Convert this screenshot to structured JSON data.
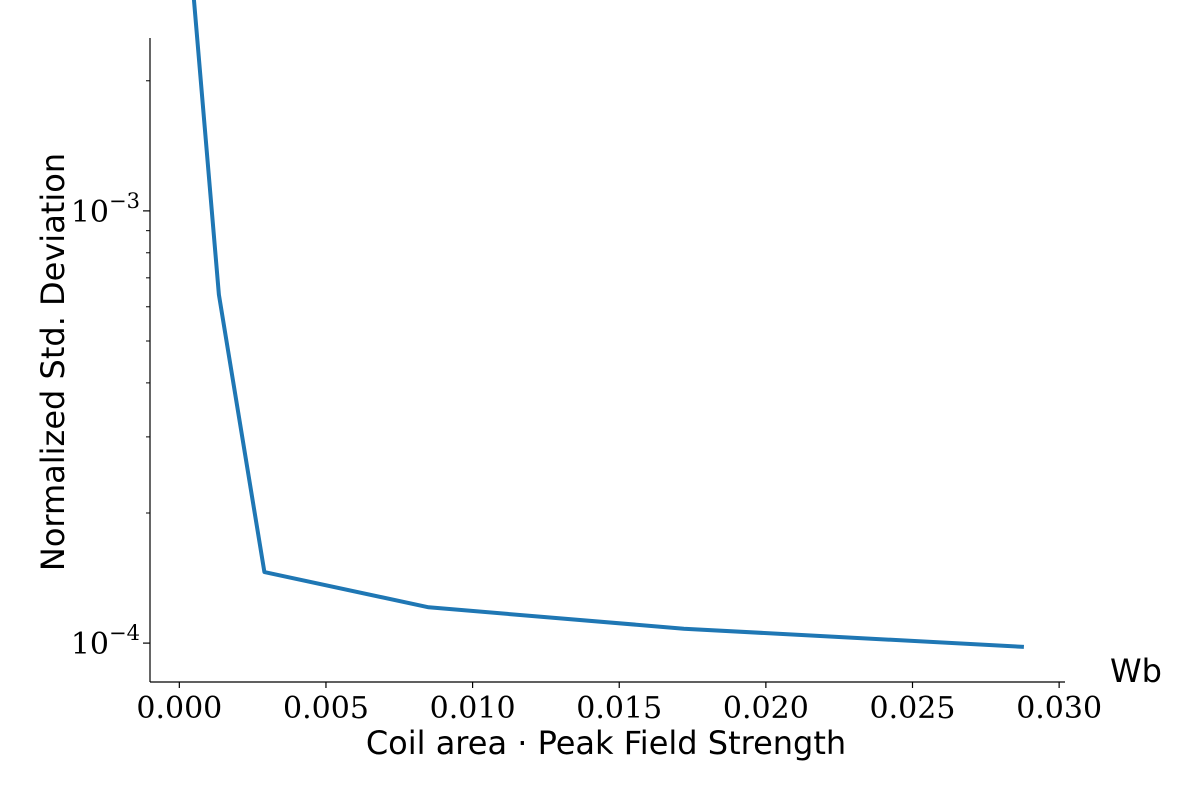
{
  "chart_data": {
    "type": "line",
    "title": "",
    "xlabel": "Coil area · Peak Field Strength",
    "ylabel": "Normalized Std. Deviation",
    "x_unit": "Wb",
    "xlim": [
      -0.001,
      0.0302
    ],
    "ylim_log10": [
      -4.09,
      -2.6
    ],
    "yscale": "log",
    "x_ticks": [
      0.0,
      0.005,
      0.01,
      0.015,
      0.02,
      0.025,
      0.03
    ],
    "x_tick_labels": [
      "0.000",
      "0.005",
      "0.010",
      "0.015",
      "0.020",
      "0.025",
      "0.030"
    ],
    "y_major_ticks": [
      0.001,
      0.0001
    ],
    "y_tick_labels": [
      {
        "base": "10",
        "exp": "−3"
      },
      {
        "base": "10",
        "exp": "−4"
      }
    ],
    "y_minor_ticks": [
      0.0002,
      0.0003,
      0.0004,
      0.0005,
      0.0006,
      0.0007,
      0.0008,
      0.0009,
      0.002,
      0.003
    ],
    "series": [
      {
        "name": "Normalized Std. Deviation",
        "color": "#1f77b4",
        "x": [
          0.00045,
          0.00135,
          0.0029,
          0.0085,
          0.0172,
          0.0288
        ],
        "y": [
          0.00337,
          0.00064,
          0.000146,
          0.000121,
          0.000108,
          9.8e-05
        ]
      }
    ],
    "grid": false
  }
}
